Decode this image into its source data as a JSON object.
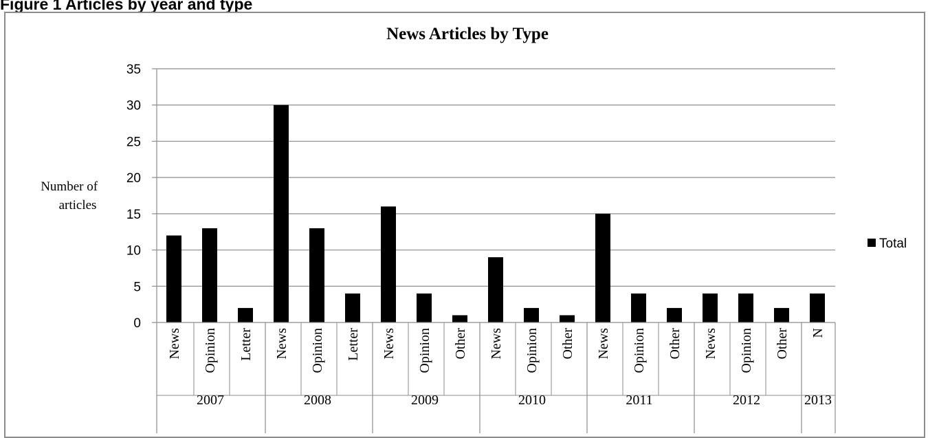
{
  "figure": {
    "caption": "Figure 1 Articles by year and type"
  },
  "chart_data": {
    "type": "bar",
    "title": "News Articles by Type",
    "ylabel": "Number of articles",
    "xlabel": "",
    "ylim": [
      0,
      35
    ],
    "yticks": [
      0,
      5,
      10,
      15,
      20,
      25,
      30,
      35
    ],
    "grid": true,
    "legend_position": "right",
    "colors": {
      "bar": "#000000",
      "grid": "#8c8c8c",
      "axis": "#8c8c8c"
    },
    "groups": [
      {
        "label": "2007",
        "categories": [
          "News",
          "Opinion",
          "Letter"
        ]
      },
      {
        "label": "2008",
        "categories": [
          "News",
          "Opinion",
          "Letter"
        ]
      },
      {
        "label": "2009",
        "categories": [
          "News",
          "Opinion",
          "Other"
        ]
      },
      {
        "label": "2010",
        "categories": [
          "News",
          "Opinion",
          "Other"
        ]
      },
      {
        "label": "2011",
        "categories": [
          "News",
          "Opinion",
          "Other"
        ]
      },
      {
        "label": "2012",
        "categories": [
          "News",
          "Opinion",
          "Other"
        ]
      },
      {
        "label": "2013",
        "categories": [
          "N"
        ]
      }
    ],
    "series": [
      {
        "name": "Total",
        "values": [
          12,
          13,
          2,
          30,
          13,
          4,
          16,
          4,
          1,
          9,
          2,
          1,
          15,
          4,
          2,
          4,
          4,
          2,
          4
        ]
      }
    ]
  }
}
